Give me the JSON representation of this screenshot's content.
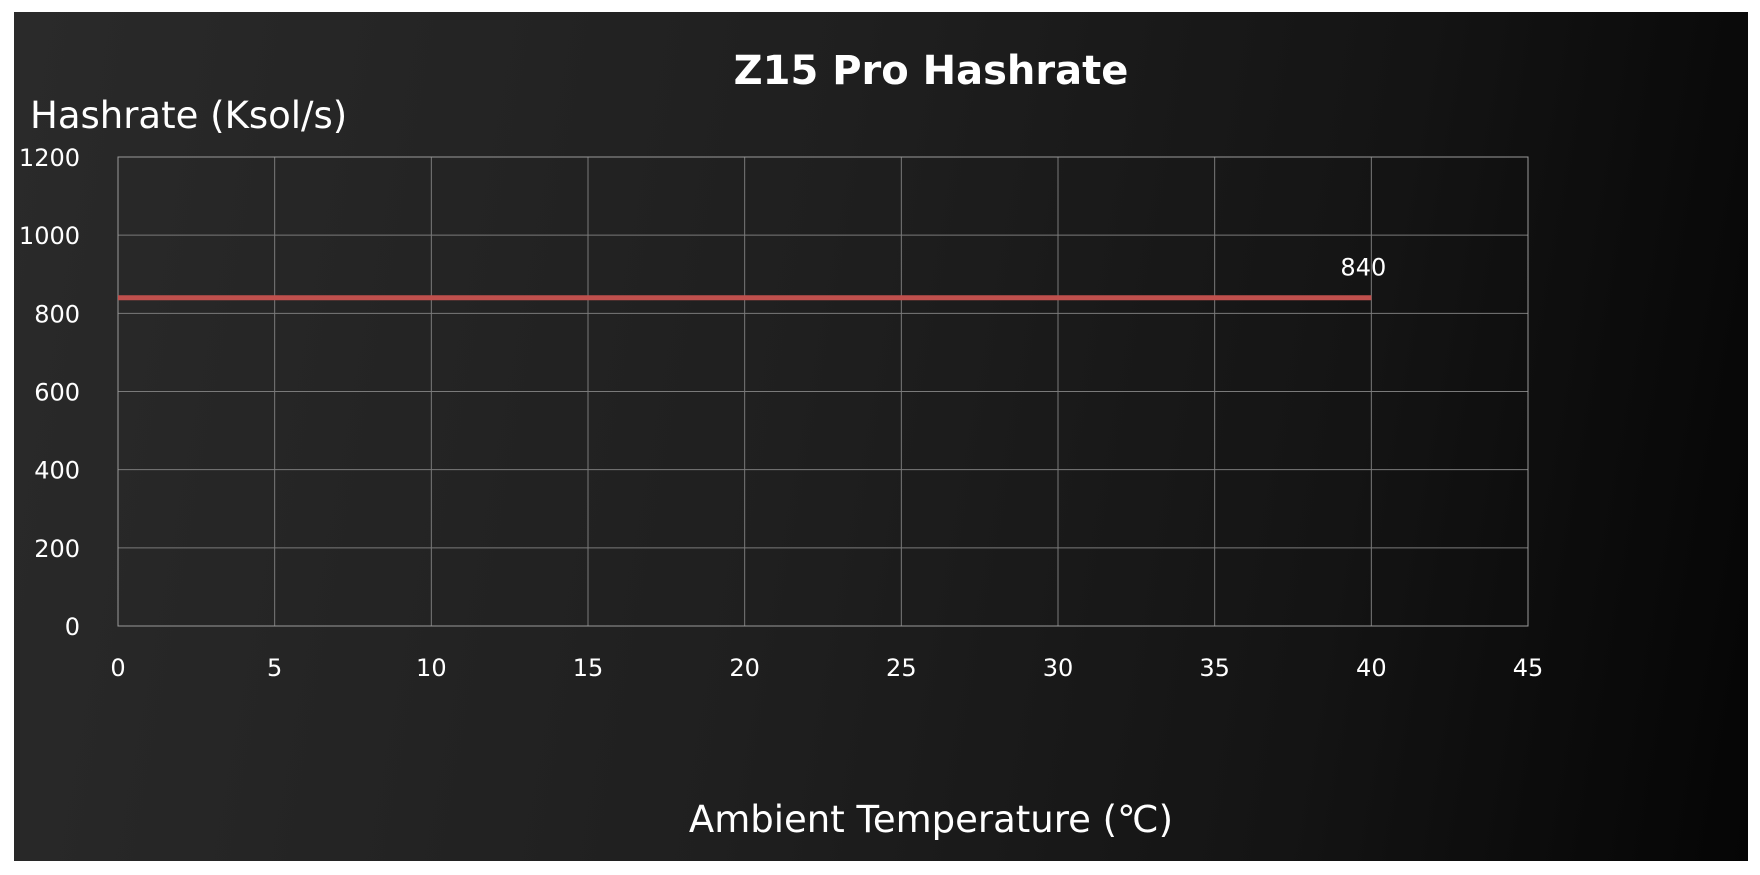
{
  "chart_data": {
    "type": "line",
    "title": "Z15 Pro Hashrate",
    "xlabel": "Ambient Temperature (℃)",
    "ylabel": "Hashrate (Ksol/s)",
    "xlim": [
      0,
      45
    ],
    "ylim": [
      0,
      1200
    ],
    "x_ticks": [
      "0",
      "5",
      "10",
      "15",
      "20",
      "25",
      "30",
      "35",
      "40",
      "45"
    ],
    "y_ticks": [
      "0",
      "200",
      "400",
      "600",
      "800",
      "1000",
      "1200"
    ],
    "grid": true,
    "series": [
      {
        "x": [
          0,
          40
        ],
        "values": [
          840,
          840
        ],
        "color": "#c0504d",
        "data_labels": [
          null,
          "840"
        ]
      }
    ]
  }
}
